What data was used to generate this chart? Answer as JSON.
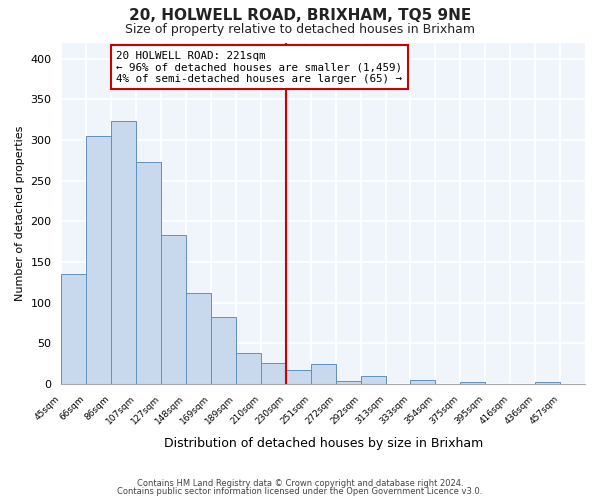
{
  "title": "20, HOLWELL ROAD, BRIXHAM, TQ5 9NE",
  "subtitle": "Size of property relative to detached houses in Brixham",
  "xlabel": "Distribution of detached houses by size in Brixham",
  "ylabel": "Number of detached properties",
  "bar_labels": [
    "45sqm",
    "66sqm",
    "86sqm",
    "107sqm",
    "127sqm",
    "148sqm",
    "169sqm",
    "189sqm",
    "210sqm",
    "230sqm",
    "251sqm",
    "272sqm",
    "292sqm",
    "313sqm",
    "333sqm",
    "354sqm",
    "375sqm",
    "395sqm",
    "416sqm",
    "436sqm",
    "457sqm"
  ],
  "bar_values": [
    135,
    305,
    323,
    273,
    183,
    112,
    83,
    38,
    26,
    17,
    25,
    4,
    10,
    0,
    5,
    0,
    2,
    0,
    0,
    3,
    0
  ],
  "bar_color": "#c8d8ed",
  "bar_edge_color": "#6090c0",
  "vline_color": "#cc0000",
  "annotation_title": "20 HOLWELL ROAD: 221sqm",
  "annotation_line1": "← 96% of detached houses are smaller (1,459)",
  "annotation_line2": "4% of semi-detached houses are larger (65) →",
  "annotation_box_color": "#ffffff",
  "annotation_border_color": "#cc0000",
  "ylim": [
    0,
    420
  ],
  "yticks": [
    0,
    50,
    100,
    150,
    200,
    250,
    300,
    350,
    400
  ],
  "footnote1": "Contains HM Land Registry data © Crown copyright and database right 2024.",
  "footnote2": "Contains public sector information licensed under the Open Government Licence v3.0.",
  "background_color": "#ffffff",
  "plot_bg_color": "#f0f4fb"
}
